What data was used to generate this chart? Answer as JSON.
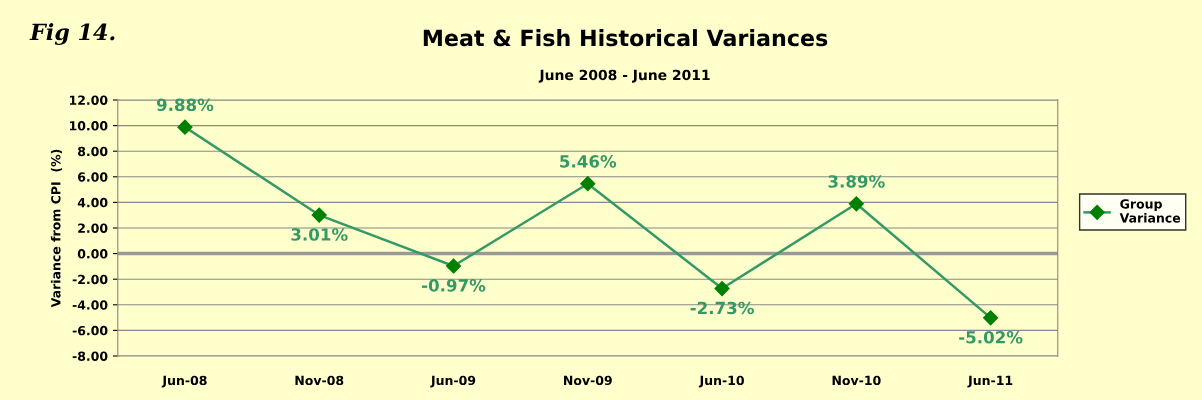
{
  "chart_data": {
    "type": "line",
    "title": "Meat & Fish Historical Variances",
    "subtitle": "June 2008 - June 2011",
    "ylabel": "Variance from CPI  (%)",
    "annotations": [
      "Fig 14."
    ],
    "categories": [
      "Jun-08",
      "Nov-08",
      "Jun-09",
      "Nov-09",
      "Jun-10",
      "Nov-10",
      "Jun-11"
    ],
    "series": [
      {
        "name": "Group Variance",
        "color": "#339966",
        "values": [
          9.88,
          3.01,
          -0.97,
          5.46,
          -2.73,
          3.89,
          -5.02
        ],
        "value_labels": [
          "9.88%",
          "3.01%",
          "-0.97%",
          "5.46%",
          "-2.73%",
          "3.89%",
          "-5.02%"
        ]
      }
    ],
    "ylim": [
      -8,
      12
    ],
    "yticks": [
      {
        "value": -8,
        "label": "-8.00"
      },
      {
        "value": -6,
        "label": "-6.00"
      },
      {
        "value": -4,
        "label": "-4.00"
      },
      {
        "value": -2,
        "label": "-2.00"
      },
      {
        "value": 0,
        "label": "0.00"
      },
      {
        "value": 2,
        "label": "2.00"
      },
      {
        "value": 4,
        "label": "4.00"
      },
      {
        "value": 6,
        "label": "6.00"
      },
      {
        "value": 8,
        "label": "8.00"
      },
      {
        "value": 10,
        "label": "10.00"
      },
      {
        "value": 12,
        "label": "12.00"
      }
    ],
    "ref_lines": [
      {
        "axis": "y",
        "value": 0,
        "color": "#999999"
      }
    ],
    "grid": "y",
    "legend": "right",
    "marker": "diamond",
    "line_style": "solid"
  }
}
